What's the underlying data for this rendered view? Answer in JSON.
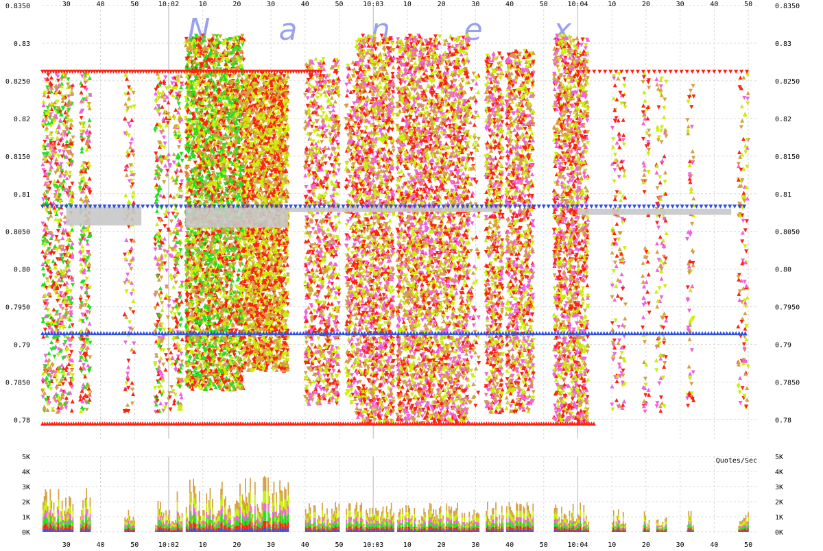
{
  "watermark": [
    "N",
    "a",
    "n",
    "e",
    "x"
  ],
  "colors": {
    "yellow_green": "#c8f000",
    "red": "#ff2010",
    "green": "#20e020",
    "tan": "#d4a040",
    "pink": "#f060e0",
    "blue": "#3050e0",
    "cyan": "#40c8f0",
    "gray": "#c8c8c8",
    "dark_gray": "#406060"
  },
  "chart_data": [
    {
      "type": "scatter",
      "description_note": "",
      "x_ticks": [
        "30",
        "40",
        "50",
        "10:02",
        "10",
        "20",
        "30",
        "40",
        "50",
        "10:03",
        "10",
        "20",
        "30",
        "40",
        "50",
        "10:04",
        "10",
        "20",
        "30",
        "40",
        "50"
      ],
      "x_range": [
        "10:01:23",
        "10:04:53"
      ],
      "y_ticks": [
        "0.78",
        "0.7850",
        "0.79",
        "0.7950",
        "0.80",
        "0.8050",
        "0.81",
        "0.8150",
        "0.82",
        "0.8250",
        "0.83",
        "0.8350"
      ],
      "ylim": [
        0.7775,
        0.835
      ],
      "grid": true,
      "series": [
        {
          "color": "yellow_green",
          "marker": "triangle",
          "y_range": [
            0.78,
            0.83
          ]
        },
        {
          "color": "red",
          "marker": "triangle",
          "y_range": [
            0.78,
            0.8265
          ]
        },
        {
          "color": "green",
          "marker": "triangle",
          "y_range": [
            0.786,
            0.831
          ]
        },
        {
          "color": "tan",
          "marker": "triangle",
          "y_range": [
            0.781,
            0.832
          ]
        },
        {
          "color": "pink",
          "marker": "triangle",
          "y_range": [
            0.78,
            0.825
          ]
        },
        {
          "color": "blue",
          "marker": "triangle",
          "level": 0.7915
        },
        {
          "color": "blue",
          "marker": "triangle",
          "level": 0.8083
        },
        {
          "color": "gray",
          "marker": "bar",
          "level": 0.8072
        }
      ]
    },
    {
      "type": "area",
      "unit_label": "Quotes/Sec",
      "y_ticks": [
        "0K",
        "1K",
        "2K",
        "3K",
        "4K",
        "5K"
      ],
      "ylim": [
        0,
        5000
      ],
      "grid": true,
      "series": [
        {
          "color": "blue"
        },
        {
          "color": "red"
        },
        {
          "color": "green"
        },
        {
          "color": "pink"
        },
        {
          "color": "yellow_green"
        },
        {
          "color": "tan"
        }
      ]
    }
  ]
}
